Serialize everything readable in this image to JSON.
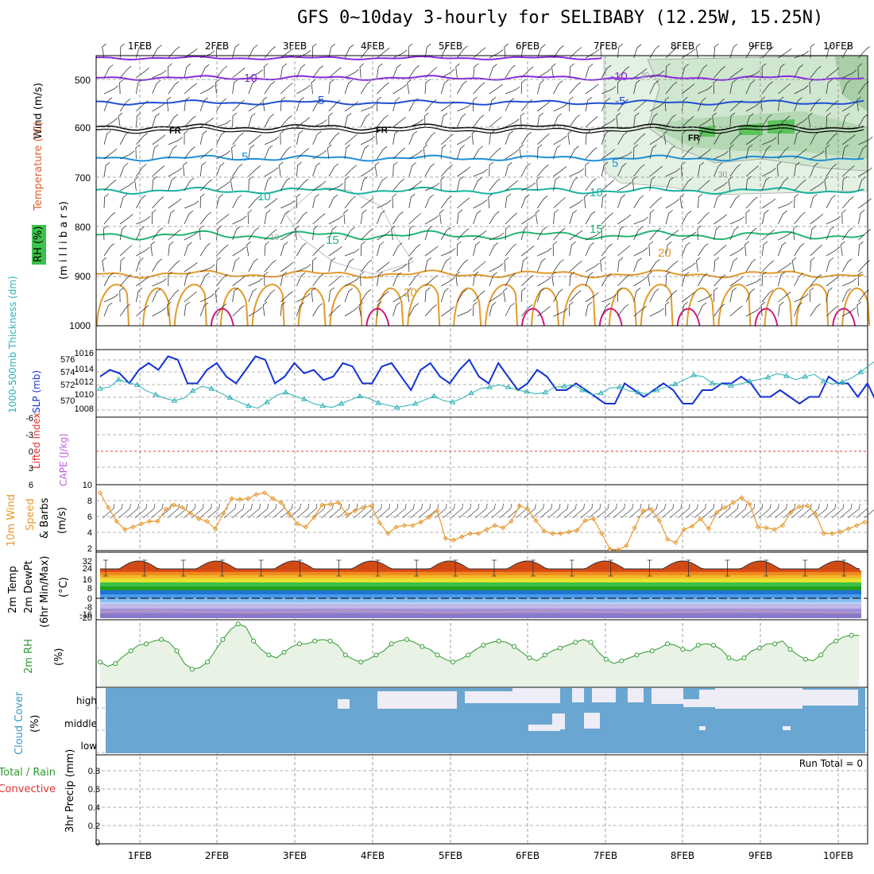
{
  "title": "GFS 0~10day 3-hourly for SELIBABY (12.25W, 15.25N)",
  "dates": [
    "1FEB",
    "2FEB",
    "3FEB",
    "4FEB",
    "5FEB",
    "6FEB",
    "7FEB",
    "8FEB",
    "9FEB",
    "10FEB"
  ],
  "colors": {
    "purple": "#8a2be2",
    "blue": "#1f4fd6",
    "cyan": "#1e90d6",
    "teal": "#19b3a0",
    "green15": "#22b573",
    "orange": "#e29a2a",
    "magenta": "#d01880",
    "rh_green": "#3cc24a",
    "slp": "#1432d4",
    "thick": "#2ab0b4",
    "wind10": "#e89a30",
    "cloud": "#6aa6d2",
    "rh2m": "#2e9a2e"
  },
  "panels": {
    "upper": {
      "ylabel_wind": "Wind (m/s)",
      "ylabel_temp": "Temperature (°C)",
      "ylabel_rh": "RH (%)",
      "ylabel_units": "(m i l l i b a r s)",
      "ticks": [
        "500",
        "600",
        "700",
        "800",
        "900",
        "1000"
      ],
      "contour_labels": {
        "m10a": "-10",
        "m10b": "-10",
        "m5a": "-5",
        "m5b": "-5",
        "fr1": "FR",
        "fr2": "FR",
        "fr3": "FR",
        "p5a": "5",
        "p5b": "5",
        "p10a": "10",
        "p10b": "10",
        "p10c": "10",
        "p15a": "15",
        "p15b": "15",
        "p20a": "20",
        "p20b": "20",
        "rh30a": "30",
        "rh30b": "30",
        "rh10": "10"
      }
    },
    "slp": {
      "ylabel_thick": "1000-500mb Thickness (dm)",
      "ylabel_slp": "SLP (mb)",
      "left_ticks": [
        "576",
        "574",
        "572",
        "570"
      ],
      "right_ticks": [
        "1016",
        "1014",
        "1012",
        "1010",
        "1008"
      ]
    },
    "cape": {
      "ylabel_li": "Lifted Index",
      "ylabel_cape": "CAPE (J/kg)",
      "ticks": [
        "-6",
        "-3",
        "0",
        "3",
        "6"
      ]
    },
    "wind10": {
      "ylabel1": "10m Wind",
      "ylabel2": "Speed",
      "ylabel3": "& Barbs",
      "ylabel4": "(m/s)",
      "ticks": [
        "10",
        "8",
        "6",
        "4",
        "2"
      ]
    },
    "temp2m": {
      "ylabel1": "2m Temp",
      "ylabel2": "2m DewPt",
      "ylabel3": "(6hr Min/Max)",
      "ylabel4": "(°C)",
      "ticks": [
        "32",
        "24",
        "16",
        "8",
        "0",
        "-8",
        "-16",
        "-20"
      ]
    },
    "rh2m": {
      "ylabel": "2m RH",
      "unit": "(%)"
    },
    "cloud": {
      "ylabel": "Cloud Cover",
      "unit": "(%)",
      "levels": [
        "high",
        "middle",
        "low"
      ]
    },
    "precip": {
      "ylabel1": "Total / Rain",
      "ylabel2": "Convective",
      "ylabel3": "3hr Precip (mm)",
      "ticks": [
        "0.8",
        "0.6",
        "0.4",
        "0.2",
        "0"
      ],
      "run_total": "Run Total = 0"
    }
  },
  "chart_data": [
    {
      "type": "line",
      "panel": "upper-air cross section",
      "ylabel": "millibars",
      "y_ticks": [
        500,
        600,
        700,
        800,
        900,
        1000
      ],
      "contours_temp_c": [
        -10,
        -5,
        0,
        5,
        10,
        15,
        20,
        25,
        30
      ],
      "rh_contours_pct": [
        10,
        30
      ],
      "freezing_level_label": "FR"
    },
    {
      "type": "line",
      "panel": "SLP / thickness",
      "series": [
        {
          "name": "SLP (mb)",
          "values": [
            1013,
            1014,
            1013.5,
            1012,
            1014,
            1015,
            1014,
            1016,
            1015.5,
            1012,
            1012,
            1014,
            1015,
            1013,
            1012,
            1014,
            1016,
            1015.5,
            1012,
            1013,
            1015,
            1013.5,
            1014,
            1012.5,
            1013,
            1015,
            1014.5,
            1012,
            1012,
            1014.5,
            1015,
            1013,
            1011,
            1014,
            1015,
            1013,
            1012,
            1014,
            1015.5,
            1013,
            1012,
            1015,
            1013,
            1011,
            1012,
            1014,
            1013,
            1011,
            1011,
            1012,
            1011,
            1010,
            1009,
            1009,
            1012,
            1011,
            1010,
            1011,
            1012,
            1011,
            1009,
            1009,
            1011,
            1011,
            1012,
            1012,
            1013,
            1012,
            1010,
            1010,
            1011,
            1010,
            1009,
            1010,
            1010,
            1013,
            1012,
            1012,
            1010,
            1012,
            1009,
            1009,
            1011,
            1011,
            1009.5
          ]
        },
        {
          "name": "1000-500mb Thickness (dm)",
          "values": [
            571.8,
            572,
            573,
            572.6,
            572.3,
            571.5,
            571,
            570.5,
            570.2,
            570.5,
            571.5,
            572.1,
            571.8,
            571.2,
            570.6,
            570,
            569.5,
            569.2,
            570,
            570.9,
            571.3,
            570.8,
            570.4,
            569.8,
            569.5,
            569.3,
            569.8,
            570.3,
            570.8,
            570.5,
            569.9,
            569.6,
            569.3,
            569.5,
            569.8,
            570.3,
            570.8,
            570.2,
            570,
            570.5,
            571.2,
            571.8,
            572,
            572.3,
            572,
            571.6,
            571.4,
            571.1,
            571.3,
            572,
            572.1,
            572.3,
            571.6,
            571,
            571.2,
            571.9,
            572,
            571.5,
            571.3,
            571.1,
            571.6,
            572,
            572.4,
            573,
            573.6,
            573.4,
            572.5,
            572.4,
            572.2,
            572.4,
            572.8,
            573,
            573.3,
            573.8,
            573.5,
            573,
            573.4,
            573.7,
            572.8,
            572.4,
            572.7,
            573.2,
            574,
            575,
            575.8,
            576,
            575.6,
            574.8,
            574
          ]
        }
      ],
      "ylim_slp": [
        1007,
        1017
      ],
      "ylim_thick": [
        568,
        577
      ]
    },
    {
      "type": "line",
      "panel": "Lifted Index / CAPE",
      "series": [
        {
          "name": "Lifted Index",
          "values": []
        }
      ],
      "ylim": [
        -6,
        6
      ]
    },
    {
      "type": "line",
      "panel": "10m wind speed",
      "series": [
        {
          "name": "10m Wind Speed (m/s)",
          "values": [
            9,
            7.2,
            5.5,
            4.5,
            4.8,
            5.2,
            5.5,
            5.5,
            7,
            7.5,
            7.2,
            6.5,
            5.8,
            5.5,
            4.6,
            6.5,
            8.3,
            8.2,
            8.3,
            8.8,
            9,
            8.3,
            7.8,
            6.4,
            5.2,
            4.8,
            6,
            7.5,
            7.6,
            7.8,
            6.3,
            6.8,
            7.2,
            7.4,
            5.3,
            4,
            4.8,
            5,
            5,
            5.4,
            6,
            6.8,
            3.4,
            3.2,
            3.6,
            4,
            4,
            4.5,
            5,
            4.7,
            5.5,
            7.4,
            7,
            5.6,
            4.3,
            4,
            4,
            4.2,
            4.4,
            5.6,
            5.8,
            4,
            2.1,
            2,
            2.5,
            4.7,
            6.8,
            7,
            5.6,
            3.3,
            2.9,
            4.5,
            4.9,
            5.8,
            4.6,
            6.6,
            7.2,
            7.8,
            8.4,
            7.6,
            4.8,
            4.7,
            4.5,
            5,
            6.6,
            7.3,
            7.4,
            6.4,
            4,
            4,
            4.2,
            4.6,
            5,
            5.4
          ]
        }
      ],
      "ylim": [
        2,
        10
      ]
    },
    {
      "type": "area",
      "panel": "2m temperature",
      "ylim": [
        -20,
        34
      ]
    },
    {
      "type": "line",
      "panel": "2m RH",
      "series": [
        {
          "name": "2m RH (%)",
          "values": [
            25,
            22,
            24,
            29,
            33,
            37,
            38,
            40,
            41,
            39,
            33,
            24,
            20,
            21,
            25,
            33,
            41,
            48,
            52,
            50,
            40,
            34,
            30,
            28,
            32,
            36,
            38,
            38,
            40,
            41,
            40,
            37,
            30,
            27,
            25,
            27,
            30,
            33,
            38,
            40,
            41,
            39,
            36,
            34,
            30,
            27,
            25,
            27,
            30,
            34,
            37,
            39,
            40,
            39,
            36,
            32,
            28,
            26,
            30,
            33,
            35,
            37,
            39,
            41,
            39,
            32,
            27,
            24,
            26,
            28,
            30,
            32,
            33,
            35,
            38,
            37,
            34,
            33,
            37,
            38,
            37,
            34,
            28,
            26,
            28,
            33,
            35,
            38,
            38,
            40,
            34,
            30,
            27,
            26,
            30,
            37,
            40,
            43,
            44,
            44
          ]
        }
      ]
    },
    {
      "type": "bar",
      "panel": "Cloud cover",
      "series": [
        {
          "name": "high",
          "values": [
            100,
            100,
            100,
            100,
            100,
            100,
            100,
            100,
            100,
            100,
            100,
            100,
            100,
            100,
            100,
            100,
            100,
            100,
            100,
            100,
            100,
            100,
            100,
            100,
            100,
            100,
            100,
            100,
            100,
            100,
            100,
            100,
            100,
            100,
            100,
            100,
            100,
            100,
            100,
            100,
            100,
            100,
            100,
            100,
            100,
            100,
            100,
            100,
            100,
            100,
            100,
            100,
            100,
            100,
            100,
            100,
            100,
            100,
            100,
            100,
            100,
            100,
            100,
            100,
            100,
            100,
            100,
            100,
            100,
            100,
            100,
            100,
            100,
            100,
            100,
            100,
            100,
            100,
            100,
            100,
            100,
            100,
            100,
            100,
            100,
            100,
            100,
            100,
            100,
            100,
            100,
            100,
            100,
            100,
            100,
            100,
            100,
            100,
            100,
            100
          ]
        },
        {
          "name": "middle",
          "values": [
            100,
            100,
            100,
            100,
            100,
            100,
            100,
            100,
            100,
            100,
            100,
            100,
            100,
            100,
            100,
            100,
            100,
            100,
            100,
            100,
            100,
            100,
            100,
            100,
            100,
            100,
            100,
            100,
            100,
            100,
            100,
            100,
            100,
            100,
            100,
            100,
            100,
            100,
            100,
            100,
            100,
            100,
            100,
            100,
            100,
            100,
            100,
            100,
            100,
            100,
            100,
            100,
            100,
            100,
            100,
            100,
            100,
            100,
            100,
            100,
            100,
            100,
            100,
            100,
            100,
            100,
            100,
            100,
            100,
            100,
            100,
            100,
            100,
            100,
            100,
            100,
            100,
            100,
            100,
            100,
            100,
            100,
            100,
            100,
            100,
            100,
            100,
            100,
            100,
            100,
            100,
            100,
            100,
            100,
            100,
            100,
            100,
            100,
            100,
            100
          ]
        },
        {
          "name": "low",
          "values": [
            100,
            100,
            100,
            100,
            100,
            100,
            100,
            100,
            100,
            100,
            100,
            100,
            100,
            100,
            100,
            100,
            100,
            100,
            100,
            100,
            100,
            100,
            100,
            100,
            100,
            100,
            100,
            100,
            100,
            100,
            100,
            100,
            100,
            100,
            100,
            100,
            100,
            100,
            100,
            100,
            100,
            100,
            100,
            100,
            100,
            100,
            100,
            100,
            100,
            100,
            100,
            100,
            100,
            100,
            100,
            100,
            100,
            100,
            100,
            100,
            100,
            100,
            100,
            100,
            100,
            100,
            100,
            100,
            100,
            100,
            100,
            100,
            100,
            100,
            100,
            100,
            100,
            100,
            100,
            100,
            100,
            100,
            100,
            100,
            100,
            100,
            100,
            100,
            100,
            100,
            100,
            100,
            100,
            100,
            100,
            100,
            100,
            100,
            100,
            100
          ]
        }
      ]
    },
    {
      "type": "bar",
      "panel": "3hr precip",
      "ylim": [
        0,
        1
      ],
      "series": [
        {
          "name": "Total / Rain",
          "values": []
        },
        {
          "name": "Convective",
          "values": []
        }
      ]
    }
  ]
}
